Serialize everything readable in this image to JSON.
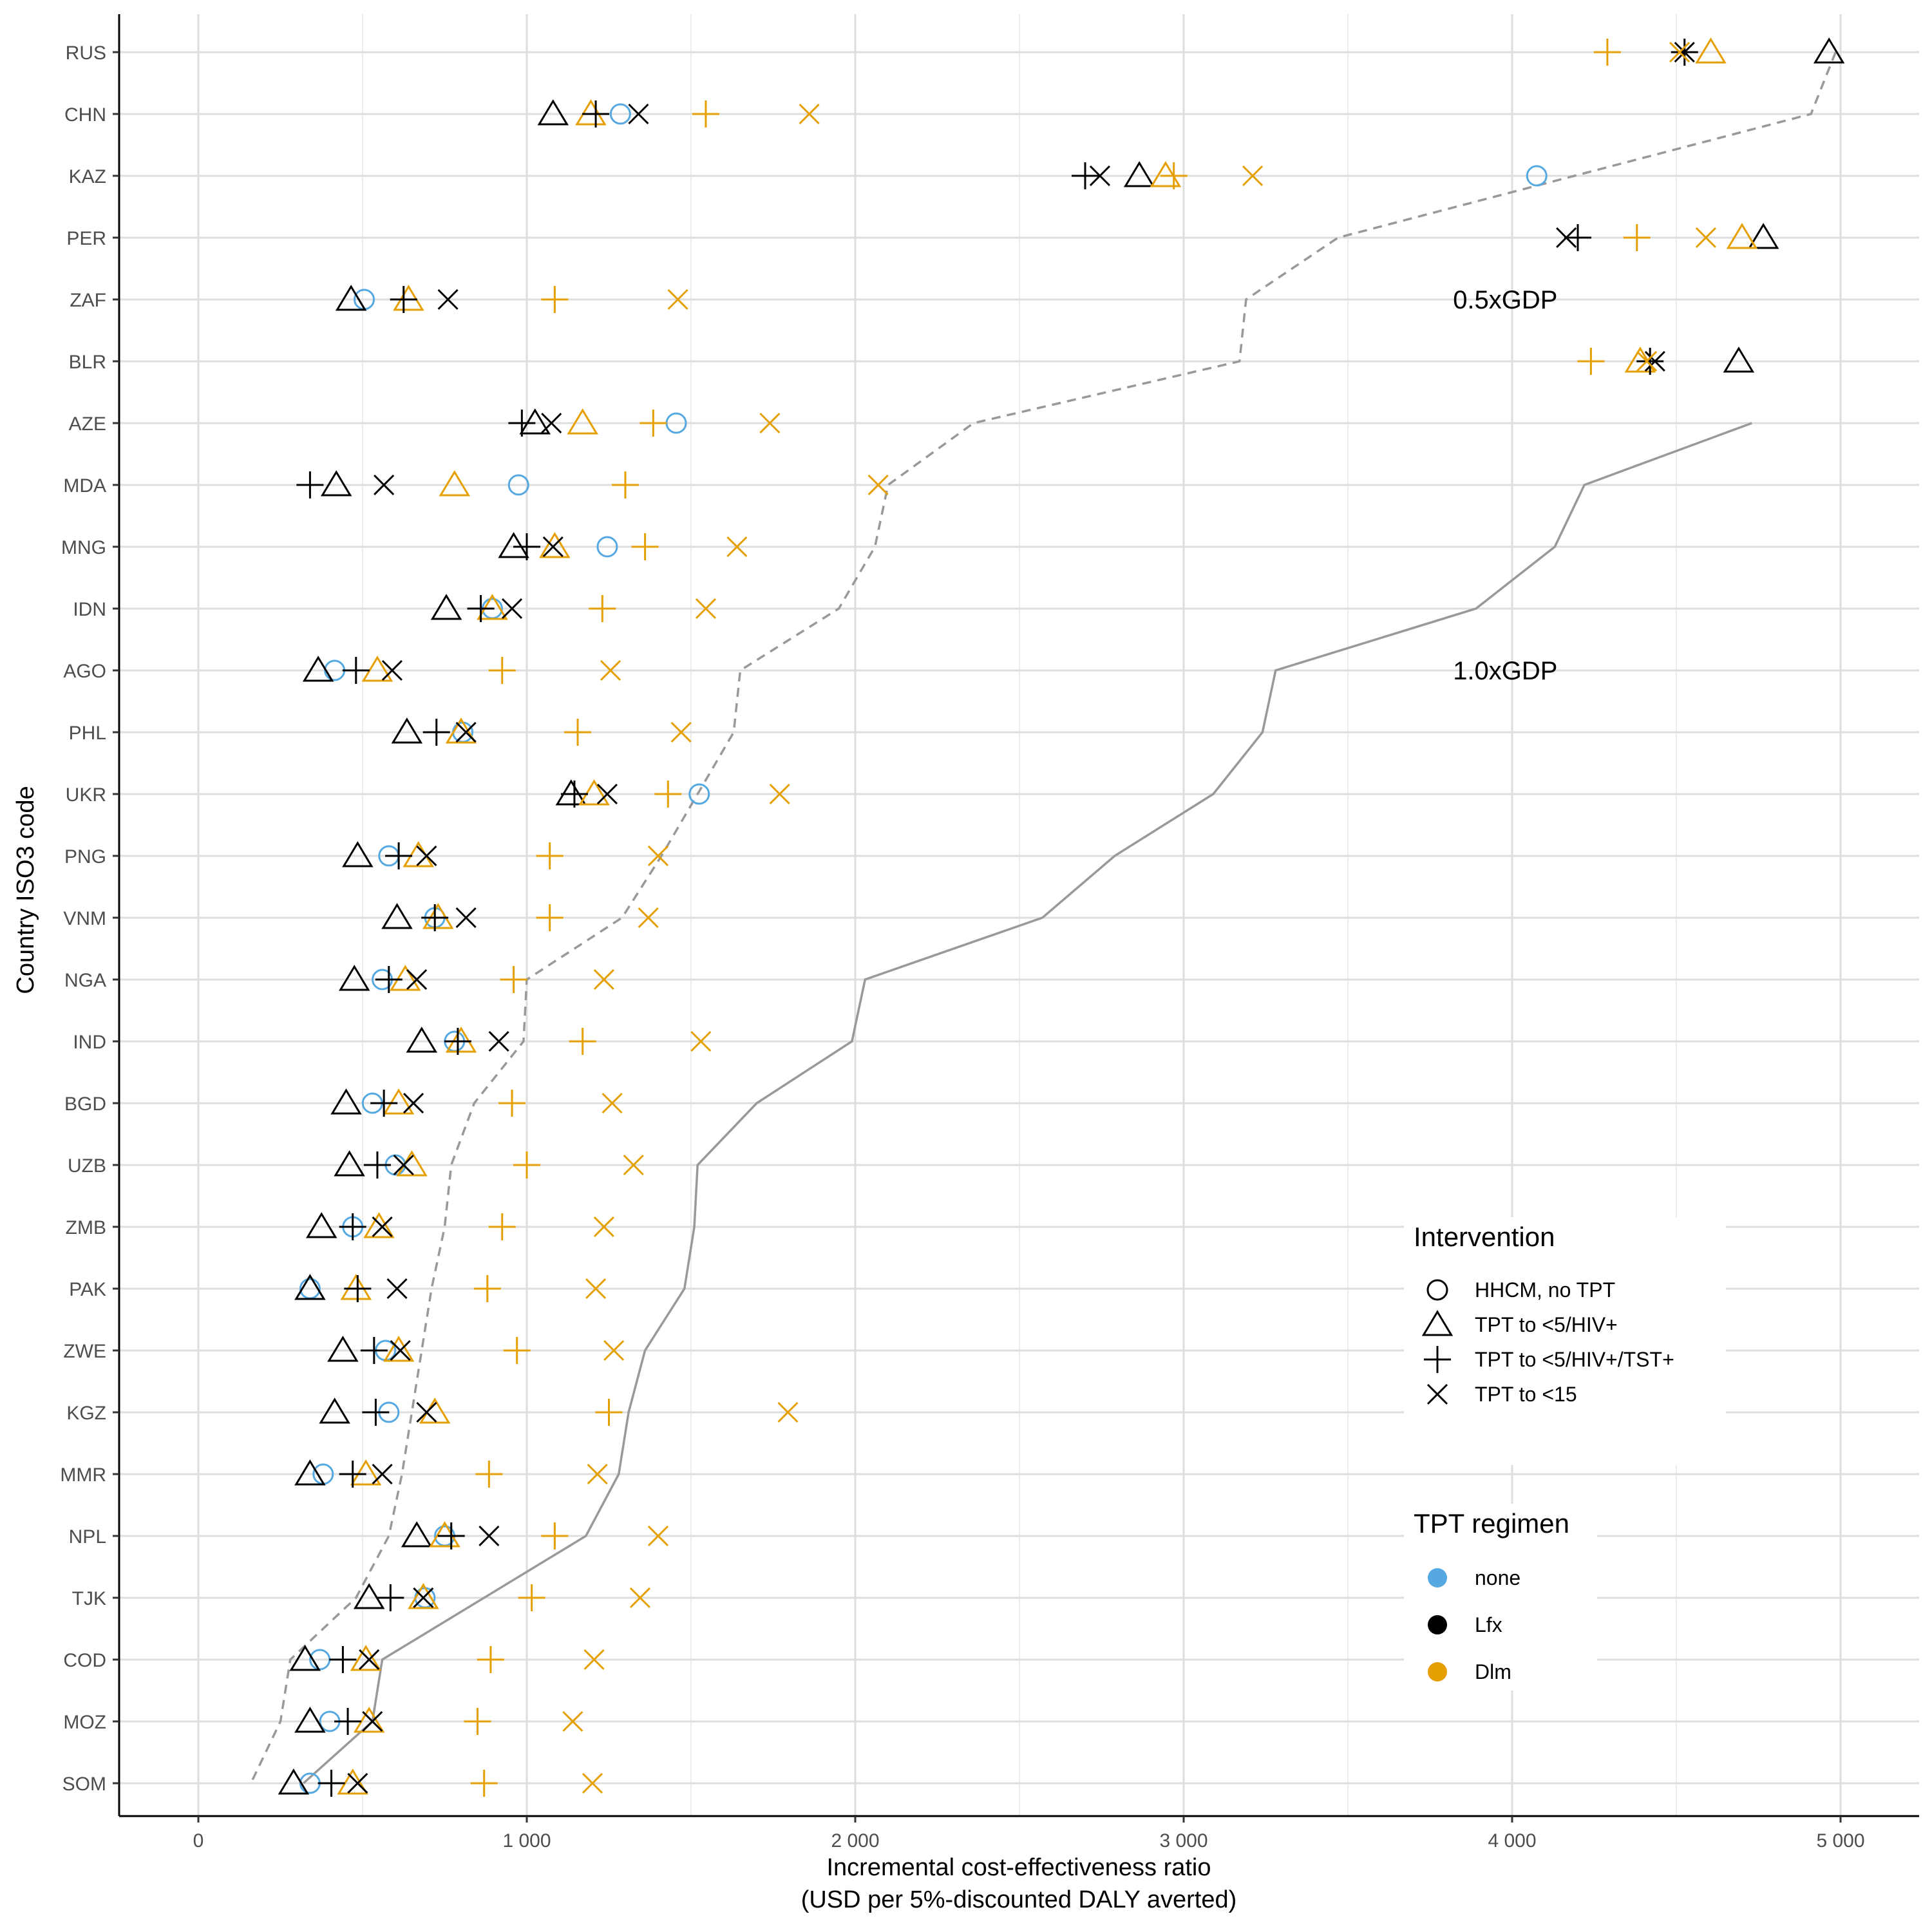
{
  "chart_data": {
    "type": "scatter",
    "xlabel": "Incremental cost-effectiveness ratio",
    "xlabel_line2": "(USD per 5%-discounted DALY averted)",
    "ylabel": "Country ISO3 code",
    "xlim": [
      -250,
      5250
    ],
    "x_ticks": [
      0,
      1000,
      2000,
      3000,
      4000,
      5000
    ],
    "x_tick_labels": [
      "0",
      "1 000",
      "2 000",
      "3 000",
      "4 000",
      "5 000"
    ],
    "grid": true,
    "countries": [
      "RUS",
      "CHN",
      "KAZ",
      "PER",
      "ZAF",
      "BLR",
      "AZE",
      "MDA",
      "MNG",
      "IDN",
      "AGO",
      "PHL",
      "UKR",
      "PNG",
      "VNM",
      "NGA",
      "IND",
      "BGD",
      "UZB",
      "ZMB",
      "PAK",
      "ZWE",
      "KGZ",
      "MMR",
      "NPL",
      "TJK",
      "COD",
      "MOZ",
      "SOM"
    ],
    "colors": {
      "none": "#56a8e0",
      "Lfx": "#000000",
      "Dlm": "#e69f00",
      "threshold": "#999999"
    },
    "legend": {
      "placement": "bottom-right",
      "intervention_title": "Intervention",
      "interventions": [
        {
          "shape": "circle",
          "label": "HHCM, no TPT"
        },
        {
          "shape": "triangle",
          "label": "TPT to <5/HIV+"
        },
        {
          "shape": "plus",
          "label": "TPT to <5/HIV+/TST+"
        },
        {
          "shape": "cross",
          "label": "TPT to <15"
        }
      ],
      "regimen_title": "TPT regimen",
      "regimens": [
        {
          "key": "none",
          "label": "none"
        },
        {
          "key": "Lfx",
          "label": "Lfx"
        },
        {
          "key": "Dlm",
          "label": "Dlm"
        }
      ]
    },
    "annotations": [
      {
        "text": "0.5xGDP",
        "x": 3820,
        "country": "ZAF"
      },
      {
        "text": "1.0xGDP",
        "x": 3820,
        "country": "AGO"
      }
    ],
    "threshold_lines": [
      {
        "name": "0.5xGDP",
        "style": "dashed",
        "values": [
          4985,
          4910,
          4190,
          3470,
          3190,
          3170,
          2360,
          2100,
          2060,
          1950,
          1650,
          1630,
          1520,
          1410,
          1290,
          1000,
          990,
          840,
          770,
          750,
          710,
          680,
          650,
          620,
          580,
          480,
          280,
          250,
          160
        ]
      },
      {
        "name": "1.0xGDP",
        "style": "solid",
        "values": [
          null,
          null,
          null,
          null,
          null,
          null,
          4730,
          4220,
          4130,
          3890,
          3280,
          3240,
          3090,
          2790,
          2570,
          2030,
          1990,
          1700,
          1520,
          1510,
          1480,
          1360,
          1310,
          1280,
          1180,
          870,
          560,
          530,
          320
        ]
      }
    ],
    "series": [
      {
        "intervention": "HHCM, no TPT",
        "regimen": "none",
        "shape": "circle",
        "values": [
          null,
          1285,
          4075,
          null,
          505,
          null,
          1455,
          975,
          1245,
          895,
          415,
          805,
          1525,
          580,
          720,
          560,
          780,
          530,
          600,
          470,
          340,
          570,
          580,
          380,
          750,
          690,
          370,
          400,
          340
        ]
      },
      {
        "intervention": "TPT to <5/HIV+",
        "regimen": "Lfx",
        "shape": "triangle",
        "values": [
          4965,
          1080,
          2865,
          4765,
          465,
          4690,
          1025,
          420,
          960,
          755,
          365,
          635,
          1135,
          485,
          605,
          475,
          680,
          450,
          460,
          375,
          340,
          440,
          415,
          340,
          665,
          520,
          325,
          340,
          290
        ]
      },
      {
        "intervention": "TPT to <5/HIV+",
        "regimen": "Dlm",
        "shape": "triangle",
        "values": [
          4605,
          1195,
          2945,
          4700,
          640,
          4390,
          1170,
          780,
          1085,
          895,
          545,
          800,
          1205,
          670,
          730,
          630,
          800,
          610,
          650,
          550,
          480,
          610,
          720,
          510,
          750,
          685,
          510,
          520,
          470
        ]
      },
      {
        "intervention": "TPT to <5/HIV+/TST+",
        "regimen": "Lfx",
        "shape": "plus",
        "values": [
          4525,
          1210,
          2700,
          4200,
          625,
          4420,
          985,
          340,
          1000,
          860,
          480,
          725,
          1145,
          610,
          720,
          580,
          790,
          565,
          545,
          470,
          485,
          535,
          540,
          470,
          770,
          585,
          440,
          455,
          405
        ]
      },
      {
        "intervention": "TPT to <5/HIV+/TST+",
        "regimen": "Dlm",
        "shape": "plus",
        "values": [
          4290,
          1545,
          2970,
          4380,
          1085,
          4240,
          1385,
          1300,
          1360,
          1230,
          925,
          1155,
          1430,
          1070,
          1070,
          960,
          1170,
          955,
          1000,
          925,
          880,
          970,
          1250,
          885,
          1085,
          1015,
          890,
          850,
          870
        ]
      },
      {
        "intervention": "TPT to <15",
        "regimen": "Lfx",
        "shape": "cross",
        "values": [
          4525,
          1340,
          2745,
          4165,
          760,
          4435,
          1075,
          565,
          1080,
          955,
          590,
          815,
          1245,
          695,
          815,
          665,
          915,
          655,
          625,
          560,
          605,
          615,
          695,
          560,
          885,
          685,
          520,
          530,
          485
        ]
      },
      {
        "intervention": "TPT to <15",
        "regimen": "Dlm",
        "shape": "cross",
        "values": [
          4510,
          1860,
          3210,
          4590,
          1460,
          4410,
          1740,
          2070,
          1640,
          1545,
          1255,
          1470,
          1770,
          1400,
          1370,
          1235,
          1530,
          1260,
          1325,
          1235,
          1210,
          1265,
          1795,
          1215,
          1400,
          1345,
          1205,
          1140,
          1200
        ]
      }
    ]
  }
}
